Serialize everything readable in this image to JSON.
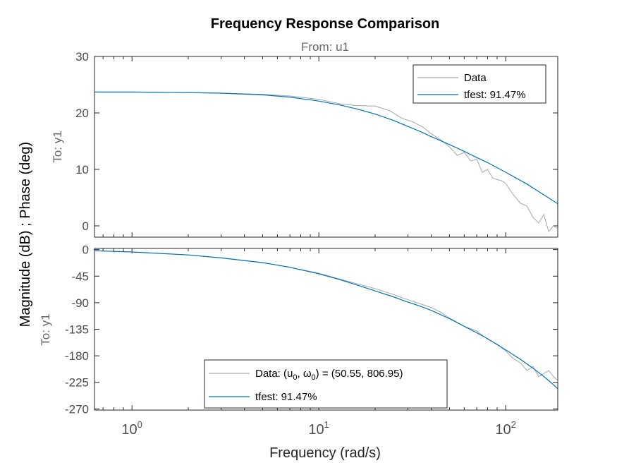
{
  "chart_data": {
    "type": "line",
    "title": "Frequency Response Comparison",
    "subtitle": "From: u1",
    "ylabel": "Magnitude (dB) ; Phase (deg)",
    "xlabel": "Frequency  (rad/s)",
    "xscale": "log",
    "xlim": [
      0.63,
      190
    ],
    "x_ticks": [
      1,
      10,
      100
    ],
    "x_tick_labels": [
      {
        "base": "10",
        "exp": "0"
      },
      {
        "base": "10",
        "exp": "1"
      },
      {
        "base": "10",
        "exp": "2"
      }
    ],
    "colors": {
      "data": "#a6a6a6",
      "model": "#0072bd"
    },
    "panels": [
      {
        "id": "magnitude",
        "ylabel": "To: y1",
        "ylim": [
          -2,
          30
        ],
        "y_ticks": [
          0,
          10,
          20,
          30
        ],
        "legend": {
          "position": "top-right",
          "entries": [
            {
              "label": "Data",
              "series": "data"
            },
            {
              "label": "tfest: 91.47%",
              "series": "model"
            }
          ]
        },
        "series": [
          {
            "key": "data",
            "x": [
              0.63,
              1,
              2,
              3,
              5,
              7,
              10,
              13,
              16,
              20,
              24,
              28,
              32,
              36,
              40,
              45,
              50,
              55,
              60,
              65,
              70,
              75,
              80,
              85,
              90,
              95,
              100,
              110,
              120,
              130,
              140,
              150,
              160,
              170,
              180,
              190
            ],
            "y": [
              23.7,
              23.7,
              23.6,
              23.5,
              23.3,
              23.0,
              22.4,
              21.6,
              21.3,
              21.2,
              20.4,
              19.0,
              18.4,
              17.5,
              16.3,
              15.2,
              14.0,
              12.5,
              13.0,
              11.5,
              11.8,
              9.5,
              10.0,
              8.5,
              8.2,
              8.0,
              7.5,
              5.5,
              4.0,
              3.5,
              1.5,
              0.5,
              2.0,
              -1.0,
              0.0,
              -0.5
            ]
          },
          {
            "key": "model",
            "x": [
              0.63,
              1,
              2,
              3,
              5,
              7,
              10,
              13,
              16,
              20,
              25,
              30,
              35,
              40,
              50,
              60,
              70,
              80,
              100,
              130,
              160,
              190
            ],
            "y": [
              23.7,
              23.7,
              23.6,
              23.5,
              23.2,
              22.8,
              22.1,
              21.4,
              20.7,
              19.8,
              18.7,
              17.6,
              16.7,
              15.8,
              14.4,
              13.2,
              12.1,
              11.2,
              9.5,
              7.4,
              5.5,
              3.9
            ]
          }
        ]
      },
      {
        "id": "phase",
        "ylabel": "To: y1",
        "ylim": [
          -272,
          2
        ],
        "y_ticks": [
          0,
          -45,
          -90,
          -135,
          -180,
          -225,
          -270
        ],
        "legend": {
          "position": "bottom-center",
          "entries": [
            {
              "label_parts": [
                "Data: (u",
                "0",
                ", ω",
                "0",
                ") = (50.55, 806.95)"
              ],
              "series": "data"
            },
            {
              "label": "tfest: 91.47%",
              "series": "model"
            }
          ]
        },
        "series": [
          {
            "key": "data",
            "x": [
              0.63,
              1,
              2,
              3,
              5,
              7,
              10,
              13,
              16,
              20,
              25,
              30,
              35,
              40,
              45,
              50,
              60,
              70,
              80,
              90,
              100,
              110,
              120,
              130,
              140,
              150,
              160,
              170,
              180,
              190
            ],
            "y": [
              -2,
              -4,
              -9,
              -14,
              -22,
              -30,
              -40,
              -50,
              -58,
              -66,
              -76,
              -85,
              -92,
              -98,
              -106,
              -116,
              -130,
              -138,
              -152,
              -160,
              -172,
              -185,
              -192,
              -205,
              -198,
              -215,
              -210,
              -205,
              -215,
              -222
            ]
          },
          {
            "key": "model",
            "x": [
              0.63,
              1,
              2,
              3,
              5,
              7,
              10,
              13,
              16,
              20,
              25,
              30,
              35,
              40,
              50,
              60,
              70,
              80,
              100,
              120,
              140,
              160,
              180,
              190
            ],
            "y": [
              -2,
              -4,
              -9,
              -14,
              -22,
              -30,
              -41,
              -51,
              -60,
              -70,
              -80,
              -89,
              -96,
              -103,
              -117,
              -130,
              -141,
              -151,
              -170,
              -186,
              -201,
              -215,
              -229,
              -236
            ]
          }
        ]
      }
    ]
  }
}
